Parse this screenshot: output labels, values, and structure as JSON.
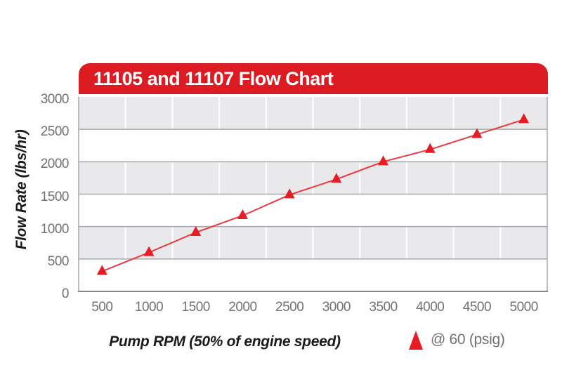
{
  "chart_data": {
    "type": "line",
    "title": "11105 and 11107 Flow Chart",
    "xlabel": "Pump RPM (50% of engine speed)",
    "ylabel": "Flow Rate (lbs/hr)",
    "x": [
      500,
      1000,
      1500,
      2000,
      2500,
      3000,
      3500,
      4000,
      4500,
      5000
    ],
    "xtick_labels": [
      "500",
      "1000",
      "1500",
      "2000",
      "2500",
      "3000",
      "3500",
      "4000",
      "4500",
      "5000"
    ],
    "yticks": [
      0,
      500,
      1000,
      1500,
      2000,
      2500,
      3000
    ],
    "ylim": [
      0,
      3000
    ],
    "grid": "alternating gray/white horizontal bands, gray band-boundary lines, white vertical column separators",
    "legend_position": "bottom-right",
    "series": [
      {
        "name": "@ 60 (psig)",
        "marker": "triangle",
        "values": [
          310,
          600,
          910,
          1170,
          1490,
          1730,
          2000,
          2190,
          2420,
          2650
        ]
      }
    ]
  },
  "colors": {
    "banner_red": "#dd1b22",
    "series_red": "#e81c24",
    "line_red": "#ee3940",
    "band_gray": "#e9e9ec",
    "grid_gray": "#a6a8ab",
    "axis_dark": "#85878a",
    "tick_text": "#6f7174",
    "title_text": "#ffffff",
    "label_text": "#1c1b19",
    "background": "#ffffff"
  }
}
